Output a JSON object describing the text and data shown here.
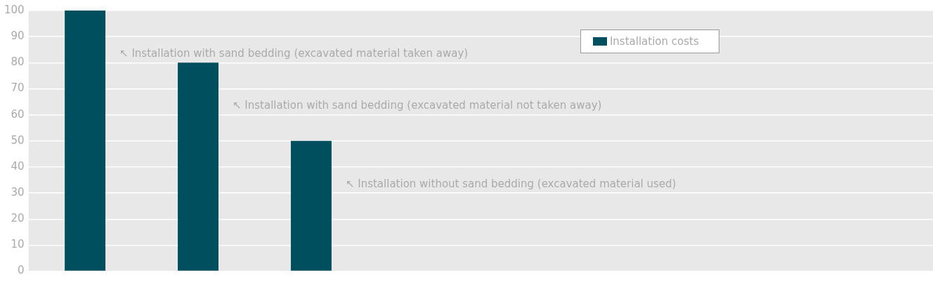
{
  "chart_data": {
    "type": "bar",
    "categories": [
      null,
      null,
      null,
      null,
      null,
      null,
      null,
      null
    ],
    "series": [
      {
        "name": "Installation costs",
        "color": "#004f5f",
        "values": [
          100,
          80,
          50,
          null,
          null,
          null,
          null,
          null
        ]
      }
    ],
    "ylim": [
      0,
      100
    ],
    "yticks": [
      0,
      10,
      20,
      30,
      40,
      50,
      60,
      70,
      80,
      90,
      100
    ],
    "grid": "y",
    "legend": "top right",
    "annotations": [
      "↖ Installation with sand bedding (excavated material taken away)",
      "↖ Installation with sand bedding (excavated material not taken away)",
      "↖ Installation without sand bedding (excavated material used)"
    ]
  }
}
